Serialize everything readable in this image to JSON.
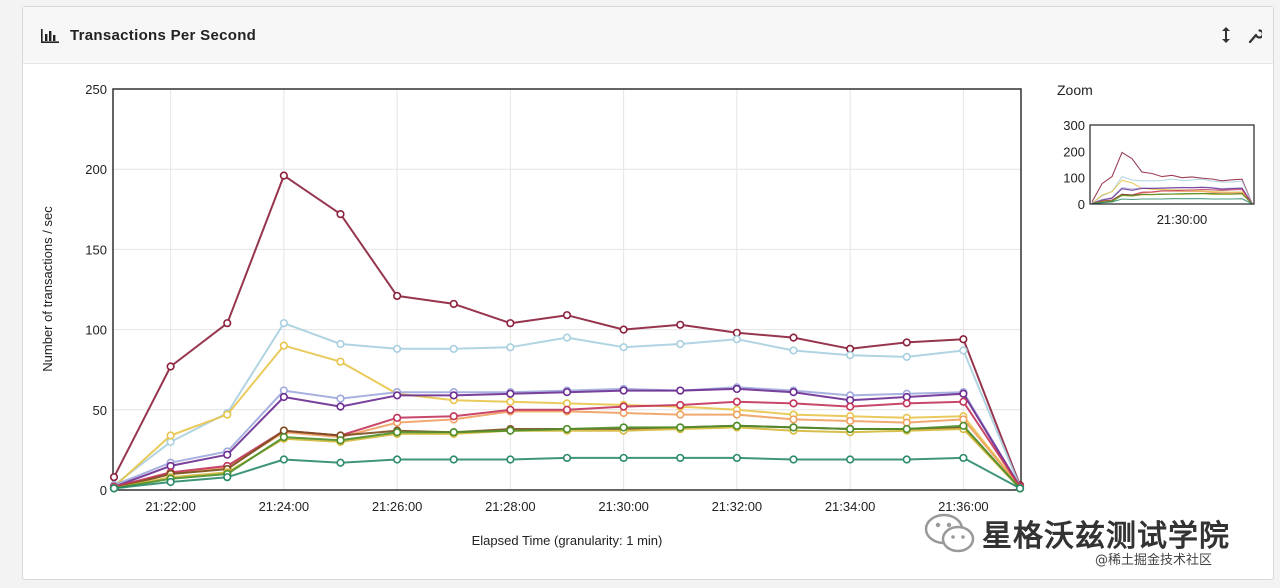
{
  "panel": {
    "title": "Transactions Per Second",
    "title_icon": "bar-chart-icon",
    "actions": [
      {
        "name": "resize-icon",
        "glyph": "↕"
      },
      {
        "name": "wrench-icon",
        "glyph": "🔧"
      }
    ]
  },
  "chart_data": {
    "type": "line",
    "xlabel": "Elapsed Time (granularity: 1 min)",
    "ylabel": "Number of transactions / sec",
    "ylim": [
      0,
      250
    ],
    "yticks": [
      0,
      50,
      100,
      150,
      200,
      250
    ],
    "x": [
      "21:21:00",
      "21:22:00",
      "21:23:00",
      "21:24:00",
      "21:25:00",
      "21:26:00",
      "21:27:00",
      "21:28:00",
      "21:29:00",
      "21:30:00",
      "21:31:00",
      "21:32:00",
      "21:33:00",
      "21:34:00",
      "21:35:00",
      "21:36:00",
      "21:37:00"
    ],
    "xticks": [
      "21:22:00",
      "21:24:00",
      "21:26:00",
      "21:28:00",
      "21:30:00",
      "21:32:00",
      "21:34:00",
      "21:36:00"
    ],
    "grid": true,
    "series": [
      {
        "color": "#8b1f3a",
        "values": [
          8,
          77,
          104,
          196,
          172,
          121,
          116,
          104,
          109,
          100,
          103,
          98,
          95,
          88,
          92,
          94,
          3
        ]
      },
      {
        "color": "#a9cfe0",
        "values": [
          3,
          30,
          48,
          104,
          91,
          88,
          88,
          89,
          95,
          89,
          91,
          94,
          87,
          84,
          83,
          87,
          2
        ]
      },
      {
        "color": "#e8c44a",
        "values": [
          2,
          34,
          47,
          90,
          80,
          60,
          56,
          55,
          54,
          53,
          52,
          50,
          47,
          46,
          45,
          46,
          2
        ]
      },
      {
        "color": "#9fa8dc",
        "values": [
          3,
          17,
          24,
          62,
          57,
          61,
          61,
          61,
          62,
          63,
          62,
          64,
          62,
          59,
          60,
          61,
          2
        ]
      },
      {
        "color": "#6b2c91",
        "values": [
          2,
          15,
          22,
          58,
          52,
          59,
          59,
          60,
          61,
          62,
          62,
          63,
          61,
          56,
          58,
          60,
          2
        ]
      },
      {
        "color": "#f0a060",
        "values": [
          2,
          10,
          14,
          36,
          33,
          42,
          44,
          49,
          49,
          48,
          47,
          47,
          44,
          43,
          42,
          44,
          2
        ]
      },
      {
        "color": "#c2335a",
        "values": [
          2,
          11,
          15,
          37,
          34,
          45,
          46,
          50,
          50,
          52,
          53,
          55,
          54,
          52,
          54,
          55,
          2
        ]
      },
      {
        "color": "#7a4e1e",
        "values": [
          1,
          10,
          13,
          37,
          34,
          37,
          36,
          38,
          38,
          38,
          39,
          40,
          39,
          38,
          38,
          39,
          1
        ]
      },
      {
        "color": "#d4b83a",
        "values": [
          1,
          8,
          11,
          32,
          30,
          35,
          35,
          37,
          37,
          37,
          38,
          39,
          37,
          36,
          37,
          38,
          1
        ]
      },
      {
        "color": "#4c8f2a",
        "values": [
          1,
          7,
          10,
          33,
          31,
          36,
          36,
          37,
          38,
          39,
          39,
          40,
          39,
          38,
          38,
          40,
          1
        ]
      },
      {
        "color": "#2a8a6a",
        "values": [
          1,
          5,
          8,
          19,
          17,
          19,
          19,
          19,
          20,
          20,
          20,
          20,
          19,
          19,
          19,
          20,
          1
        ]
      }
    ]
  },
  "zoom": {
    "label": "Zoom",
    "yticks": [
      0,
      100,
      200,
      300
    ],
    "ylim": [
      0,
      300
    ],
    "xtick": "21:30:00"
  },
  "watermark": {
    "main": "星格沃兹测试学院",
    "sub": "@稀土掘金技术社区"
  }
}
